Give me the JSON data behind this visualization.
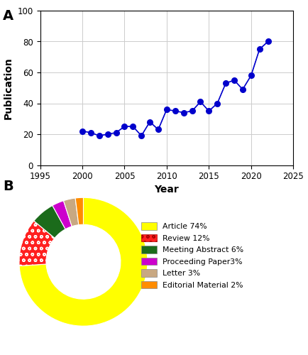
{
  "years": [
    2000,
    2001,
    2002,
    2003,
    2004,
    2005,
    2006,
    2007,
    2008,
    2009,
    2010,
    2011,
    2012,
    2013,
    2014,
    2015,
    2016,
    2017,
    2018,
    2019,
    2020,
    2021,
    2022
  ],
  "publications": [
    22,
    21,
    19,
    20,
    21,
    25,
    25,
    19,
    28,
    23,
    36,
    35,
    34,
    35,
    41,
    35,
    40,
    53,
    55,
    49,
    58,
    75,
    80
  ],
  "line_color": "#0000CC",
  "marker_color": "#0000CC",
  "xlim": [
    1995,
    2025
  ],
  "ylim": [
    0,
    100
  ],
  "xticks": [
    1995,
    2000,
    2005,
    2010,
    2015,
    2020,
    2025
  ],
  "yticks": [
    0,
    20,
    40,
    60,
    80,
    100
  ],
  "xlabel": "Year",
  "ylabel": "Publication",
  "label_A": "A",
  "label_B": "B",
  "pie_values": [
    74,
    12,
    6,
    3,
    3,
    2
  ],
  "pie_colors": [
    "#FFFF00",
    "#FF2020",
    "#1B6B1B",
    "#CC00CC",
    "#C8A882",
    "#FF8C00"
  ],
  "pie_labels": [
    "Article 74%",
    "Review 12%",
    "Meeting Abstract 6%",
    "Proceeding Paper3%",
    "Letter 3%",
    "Editorial Material 2%"
  ],
  "pie_hatch": [
    "",
    "oo",
    "",
    "",
    "",
    ""
  ],
  "donut_width": 0.42
}
